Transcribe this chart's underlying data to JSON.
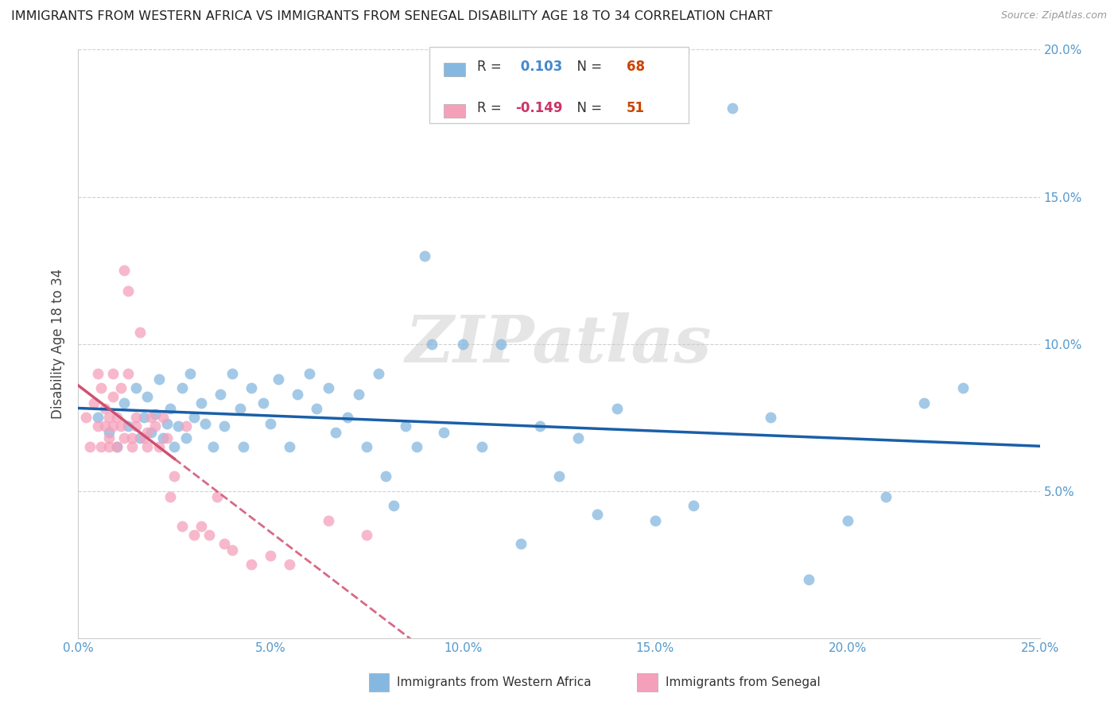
{
  "title": "IMMIGRANTS FROM WESTERN AFRICA VS IMMIGRANTS FROM SENEGAL DISABILITY AGE 18 TO 34 CORRELATION CHART",
  "source": "Source: ZipAtlas.com",
  "ylabel_label": "Disability Age 18 to 34",
  "legend_label1": "Immigrants from Western Africa",
  "legend_label2": "Immigrants from Senegal",
  "r1": 0.103,
  "n1": 68,
  "r2": -0.149,
  "n2": 51,
  "xlim": [
    0.0,
    0.25
  ],
  "ylim": [
    0.0,
    0.2
  ],
  "xticks": [
    0.0,
    0.05,
    0.1,
    0.15,
    0.2,
    0.25
  ],
  "yticks": [
    0.05,
    0.1,
    0.15,
    0.2
  ],
  "color_blue": "#85b8e0",
  "color_pink": "#f5a0bb",
  "trendline_blue": "#1a5fa8",
  "trendline_pink": "#d05070",
  "watermark": "ZIPatlas",
  "blue_scatter_x": [
    0.005,
    0.008,
    0.01,
    0.012,
    0.013,
    0.015,
    0.016,
    0.017,
    0.018,
    0.019,
    0.02,
    0.021,
    0.022,
    0.023,
    0.024,
    0.025,
    0.026,
    0.027,
    0.028,
    0.029,
    0.03,
    0.032,
    0.033,
    0.035,
    0.037,
    0.038,
    0.04,
    0.042,
    0.043,
    0.045,
    0.048,
    0.05,
    0.052,
    0.055,
    0.057,
    0.06,
    0.062,
    0.065,
    0.067,
    0.07,
    0.073,
    0.075,
    0.078,
    0.08,
    0.082,
    0.085,
    0.088,
    0.09,
    0.092,
    0.095,
    0.1,
    0.105,
    0.11,
    0.115,
    0.12,
    0.125,
    0.13,
    0.135,
    0.14,
    0.15,
    0.16,
    0.17,
    0.18,
    0.19,
    0.2,
    0.21,
    0.22,
    0.23
  ],
  "blue_scatter_y": [
    0.075,
    0.07,
    0.065,
    0.08,
    0.072,
    0.085,
    0.068,
    0.075,
    0.082,
    0.07,
    0.076,
    0.088,
    0.068,
    0.073,
    0.078,
    0.065,
    0.072,
    0.085,
    0.068,
    0.09,
    0.075,
    0.08,
    0.073,
    0.065,
    0.083,
    0.072,
    0.09,
    0.078,
    0.065,
    0.085,
    0.08,
    0.073,
    0.088,
    0.065,
    0.083,
    0.09,
    0.078,
    0.085,
    0.07,
    0.075,
    0.083,
    0.065,
    0.09,
    0.055,
    0.045,
    0.072,
    0.065,
    0.13,
    0.1,
    0.07,
    0.1,
    0.065,
    0.1,
    0.032,
    0.072,
    0.055,
    0.068,
    0.042,
    0.078,
    0.04,
    0.045,
    0.18,
    0.075,
    0.02,
    0.04,
    0.048,
    0.08,
    0.085
  ],
  "pink_scatter_x": [
    0.002,
    0.003,
    0.004,
    0.005,
    0.005,
    0.006,
    0.006,
    0.007,
    0.007,
    0.008,
    0.008,
    0.008,
    0.009,
    0.009,
    0.009,
    0.01,
    0.01,
    0.011,
    0.011,
    0.012,
    0.012,
    0.013,
    0.013,
    0.014,
    0.014,
    0.015,
    0.015,
    0.016,
    0.017,
    0.018,
    0.018,
    0.019,
    0.02,
    0.021,
    0.022,
    0.023,
    0.024,
    0.025,
    0.027,
    0.028,
    0.03,
    0.032,
    0.034,
    0.036,
    0.038,
    0.04,
    0.045,
    0.05,
    0.055,
    0.065,
    0.075
  ],
  "pink_scatter_y": [
    0.075,
    0.065,
    0.08,
    0.072,
    0.09,
    0.065,
    0.085,
    0.072,
    0.078,
    0.065,
    0.075,
    0.068,
    0.082,
    0.072,
    0.09,
    0.065,
    0.075,
    0.072,
    0.085,
    0.068,
    0.125,
    0.118,
    0.09,
    0.068,
    0.065,
    0.075,
    0.072,
    0.104,
    0.068,
    0.07,
    0.065,
    0.075,
    0.072,
    0.065,
    0.075,
    0.068,
    0.048,
    0.055,
    0.038,
    0.072,
    0.035,
    0.038,
    0.035,
    0.048,
    0.032,
    0.03,
    0.025,
    0.028,
    0.025,
    0.04,
    0.035
  ]
}
